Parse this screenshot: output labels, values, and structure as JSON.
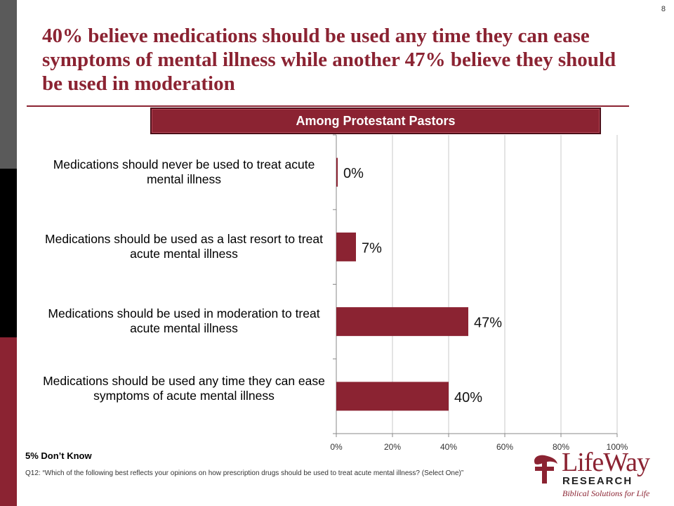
{
  "slide": {
    "page_number": "8",
    "title": "40% believe medications should be used any time they can ease symptoms of mental illness while another 47% believe they should be used in moderation",
    "subtitle": "Among Protestant Pastors",
    "dont_know_note": "5% Don’t Know",
    "question_note": "Q12: “Which of the following best reflects your opinions on how prescription drugs should be used to treat acute mental illness? (Select One)”"
  },
  "colors": {
    "accent": "#8b2332",
    "strip_grey": "#5a5a5a",
    "strip_black": "#000000"
  },
  "logo": {
    "wordmark": "LifeWay",
    "research": "RESEARCH",
    "tagline": "Biblical Solutions for Life"
  },
  "chart_data": {
    "type": "bar",
    "orientation": "horizontal",
    "title": "",
    "categories": [
      "Medications should never be used to treat acute mental illness",
      "Medications should be used as a last resort to treat acute mental illness",
      "Medications should be used in moderation to treat acute mental illness",
      "Medications should be used any time they can ease symptoms of acute mental illness"
    ],
    "values": [
      0,
      7,
      47,
      40
    ],
    "data_labels": [
      "0%",
      "7%",
      "47%",
      "40%"
    ],
    "x_ticks": [
      "0%",
      "20%",
      "40%",
      "60%",
      "80%",
      "100%"
    ],
    "xlim": [
      0,
      100
    ],
    "grid": true,
    "bar_color": "#8b2332"
  }
}
